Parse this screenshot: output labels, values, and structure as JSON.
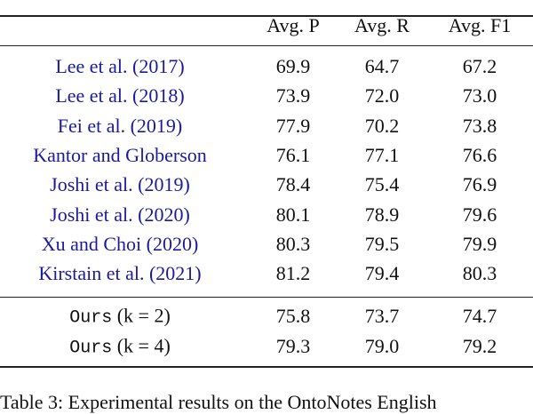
{
  "table": {
    "header": [
      "Avg. P",
      "Avg. R",
      "Avg. F1"
    ],
    "rows": [
      {
        "method": "Lee et al. (2017)",
        "values": [
          "69.9",
          "64.7",
          "67.2"
        ]
      },
      {
        "method": "Lee et al. (2018)",
        "values": [
          "73.9",
          "72.0",
          "73.0"
        ]
      },
      {
        "method": "Fei et al. (2019)",
        "values": [
          "77.9",
          "70.2",
          "73.8"
        ]
      },
      {
        "method": "Kantor and Globerson",
        "values": [
          "76.1",
          "77.1",
          "76.6"
        ]
      },
      {
        "method": "Joshi et al. (2019)",
        "values": [
          "78.4",
          "75.4",
          "76.9"
        ]
      },
      {
        "method": "Joshi et al. (2020)",
        "values": [
          "80.1",
          "78.9",
          "79.6"
        ]
      },
      {
        "method": "Xu and Choi (2020)",
        "values": [
          "80.3",
          "79.5",
          "79.9"
        ]
      },
      {
        "method": "Kirstain et al. (2021)",
        "values": [
          "81.2",
          "79.4",
          "80.3"
        ]
      }
    ],
    "ours_rows": [
      {
        "method": "Ours",
        "setting": "(k = 2)",
        "values": [
          "75.8",
          "73.7",
          "74.7"
        ]
      },
      {
        "method": "Ours",
        "setting": "(k = 4)",
        "values": [
          "79.3",
          "79.0",
          "79.2"
        ]
      }
    ]
  },
  "caption": "Table 3: Experimental results on the OntoNotes English"
}
